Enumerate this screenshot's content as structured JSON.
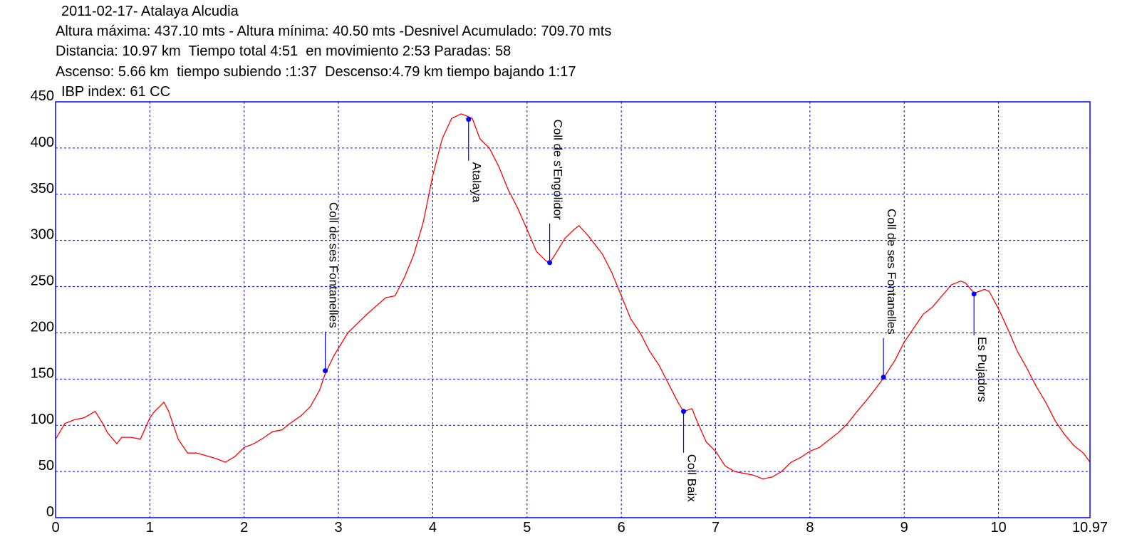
{
  "header": {
    "title": "2011-02-17- Atalaya Alcudia",
    "line1": "Altura máxima: 437.10 mts - Altura mínima: 40.50 mts -Desnivel Acumulado: 709.70 mts",
    "line2": "Distancia: 10.97 km  Tiempo total 4:51  en movimiento 2:53 Paradas: 58",
    "line3": "Ascenso: 5.66 km  tiempo subiendo :1:37  Descenso:4.79 km tiempo bajando 1:17",
    "line4": "IBP index: 61 CC"
  },
  "colors": {
    "profile": "#ff0000",
    "frame": "#0000ff",
    "grid": "#0000ff",
    "marker": "#0000ff",
    "background": "#ffffff"
  },
  "chart_data": {
    "type": "line",
    "xlim": [
      0,
      10.97
    ],
    "ylim": [
      0,
      450
    ],
    "x_ticks": [
      "0",
      "1",
      "2",
      "3",
      "4",
      "5",
      "6",
      "7",
      "8",
      "9",
      "10",
      "10.97"
    ],
    "x_tick_values": [
      0,
      1,
      2,
      3,
      4,
      5,
      6,
      7,
      8,
      9,
      10,
      10.97
    ],
    "y_ticks": [
      "0",
      "50",
      "100",
      "150",
      "200",
      "250",
      "300",
      "350",
      "400",
      "450"
    ],
    "y_tick_values": [
      0,
      50,
      100,
      150,
      200,
      250,
      300,
      350,
      400,
      450
    ],
    "grid": true,
    "series": [
      {
        "x": [
          0,
          0.1,
          0.2,
          0.3,
          0.42,
          0.5,
          0.55,
          0.65,
          0.7,
          0.8,
          0.9,
          1.0,
          1.05,
          1.15,
          1.2,
          1.3,
          1.4,
          1.5,
          1.7,
          1.8,
          1.9,
          2.0,
          2.1,
          2.2,
          2.3,
          2.4,
          2.5,
          2.6,
          2.7,
          2.8,
          2.86,
          2.95,
          3.1,
          3.3,
          3.5,
          3.6,
          3.7,
          3.8,
          3.9,
          4.0,
          4.1,
          4.2,
          4.3,
          4.38,
          4.42,
          4.5,
          4.6,
          4.7,
          4.8,
          4.9,
          5.0,
          5.1,
          5.2,
          5.24,
          5.3,
          5.4,
          5.5,
          5.55,
          5.65,
          5.8,
          5.9,
          6.0,
          6.1,
          6.2,
          6.3,
          6.4,
          6.5,
          6.6,
          6.66,
          6.75,
          6.8,
          6.9,
          7.0,
          7.1,
          7.2,
          7.3,
          7.4,
          7.5,
          7.6,
          7.7,
          7.8,
          7.9,
          8.0,
          8.1,
          8.2,
          8.3,
          8.4,
          8.5,
          8.6,
          8.7,
          8.78,
          8.9,
          9.0,
          9.1,
          9.2,
          9.3,
          9.4,
          9.5,
          9.6,
          9.65,
          9.7,
          9.74,
          9.8,
          9.85,
          9.9,
          10.0,
          10.1,
          10.2,
          10.3,
          10.4,
          10.5,
          10.6,
          10.7,
          10.8,
          10.9,
          10.97
        ],
        "y": [
          85,
          102,
          106,
          108,
          115,
          102,
          92,
          80,
          87,
          87,
          85,
          108,
          115,
          125,
          115,
          85,
          70,
          70,
          64,
          60,
          66,
          76,
          80,
          86,
          93,
          95,
          103,
          110,
          120,
          138,
          156,
          175,
          200,
          220,
          238,
          240,
          260,
          285,
          320,
          370,
          410,
          432,
          437,
          434,
          432,
          410,
          400,
          380,
          355,
          335,
          312,
          288,
          278,
          276,
          285,
          302,
          312,
          316,
          305,
          285,
          265,
          240,
          215,
          200,
          180,
          165,
          145,
          125,
          115,
          118,
          105,
          82,
          72,
          56,
          50,
          48,
          46,
          42,
          44,
          50,
          60,
          65,
          72,
          76,
          84,
          92,
          102,
          115,
          127,
          140,
          151,
          170,
          190,
          205,
          220,
          228,
          240,
          252,
          256,
          254,
          248,
          243,
          245,
          247,
          245,
          226,
          204,
          180,
          162,
          142,
          125,
          105,
          90,
          78,
          70,
          60
        ]
      }
    ],
    "waypoints": [
      {
        "name": "Coll de ses Fontanelles",
        "x": 2.86,
        "y": 159
      },
      {
        "name": "Atalaya",
        "x": 4.38,
        "y": 431
      },
      {
        "name": "Coll de s'Engolidor",
        "x": 5.24,
        "y": 276
      },
      {
        "name": "Coll Baix",
        "x": 6.66,
        "y": 115
      },
      {
        "name": "Coll de ses Fontanelles",
        "x": 8.78,
        "y": 152
      },
      {
        "name": "Es Pujadors",
        "x": 9.74,
        "y": 242
      }
    ]
  }
}
